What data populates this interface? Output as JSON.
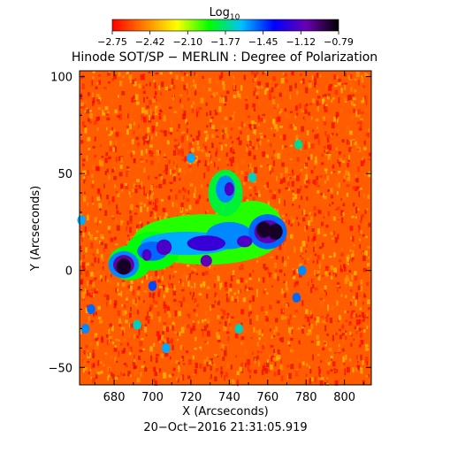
{
  "chart_data": {
    "type": "heatmap",
    "title": "Hinode SOT/SP − MERLIN : Degree of Polarization",
    "colorbar": {
      "label": "Log",
      "label_subscript": "10",
      "ticks": [
        "−2.75",
        "−2.42",
        "−2.10",
        "−1.77",
        "−1.45",
        "−1.12",
        "−0.79"
      ],
      "range": [
        -2.75,
        -0.79
      ],
      "colors": [
        "#ff0000",
        "#ff8000",
        "#ffff00",
        "#00ff00",
        "#00c0ff",
        "#0000ff",
        "#6a00b0",
        "#000000"
      ]
    },
    "xlabel": "X (Arcseconds)",
    "ylabel": "Y (Arcseconds)",
    "xlim": [
      662,
      814
    ],
    "ylim": [
      -59,
      103
    ],
    "xticks": [
      680,
      700,
      720,
      740,
      760,
      780,
      800
    ],
    "xtick_labels": [
      "680",
      "700",
      "720",
      "740",
      "760",
      "780",
      "800"
    ],
    "yticks": [
      -50,
      0,
      50,
      100
    ],
    "ytick_labels": [
      "−50",
      "0",
      "50",
      "100"
    ],
    "timestamp": "20−Oct−2016 21:31:05.919",
    "background_level": -2.55,
    "features": [
      {
        "name": "spot-left",
        "x": 685,
        "y": 2,
        "level": -0.85
      },
      {
        "name": "spot-right-a",
        "x": 758,
        "y": 21,
        "level": -0.85
      },
      {
        "name": "spot-right-b",
        "x": 764,
        "y": 20,
        "level": -0.85
      },
      {
        "name": "plage-center",
        "x": 728,
        "y": 16,
        "level": -1.45
      },
      {
        "name": "plage-upper",
        "x": 738,
        "y": 42,
        "level": -1.6
      }
    ]
  }
}
